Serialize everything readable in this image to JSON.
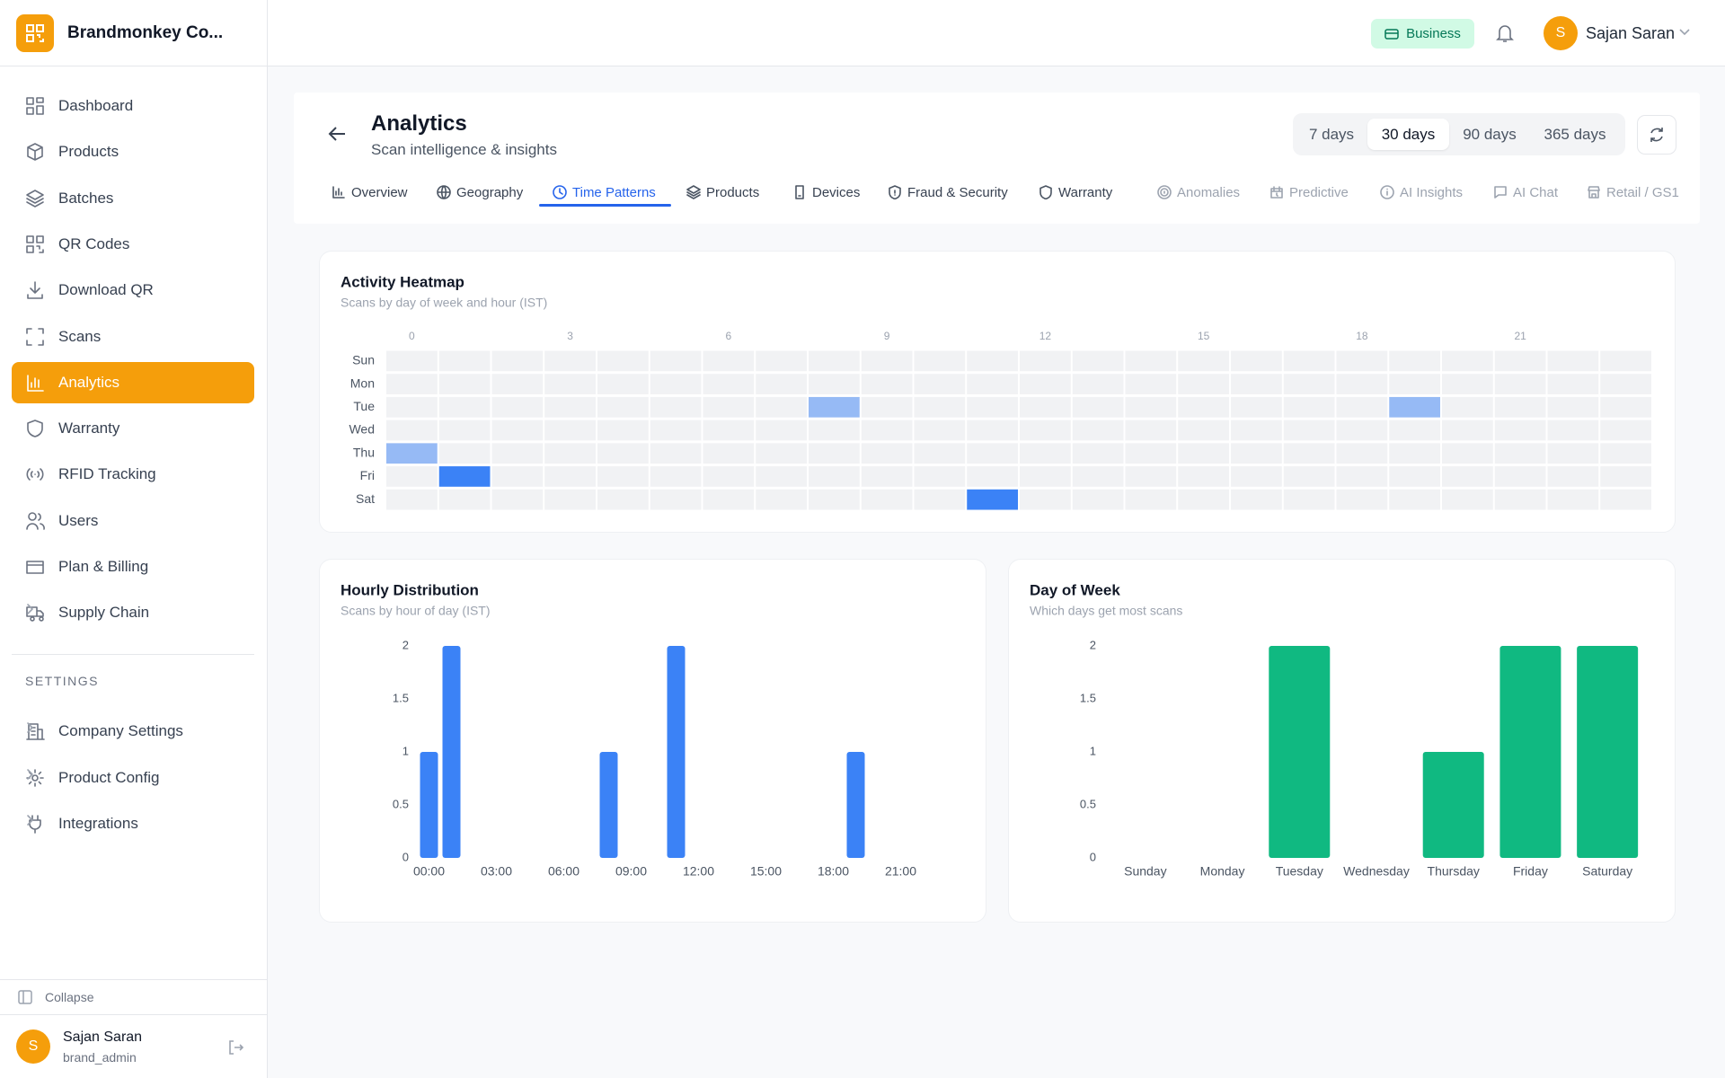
{
  "sidebar": {
    "brand": "Brandmonkey Co...",
    "nav": [
      "Dashboard",
      "Products",
      "Batches",
      "QR Codes",
      "Download QR",
      "Scans",
      "Analytics",
      "Warranty",
      "RFID Tracking",
      "Users",
      "Plan & Billing",
      "Supply Chain"
    ],
    "settings_label": "SETTINGS",
    "settings": [
      "Company Settings",
      "Product Config",
      "Integrations"
    ],
    "collapse": "Collapse",
    "user": {
      "initial": "S",
      "name": "Sajan Saran",
      "role": "brand_admin"
    }
  },
  "header": {
    "plan": "Business",
    "initial": "S",
    "user_name": "Sajan Saran"
  },
  "page": {
    "title": "Analytics",
    "subtitle": "Scan intelligence & insights",
    "ranges": [
      "7 days",
      "30 days",
      "90 days",
      "365 days"
    ],
    "tabs": [
      "Overview",
      "Geography",
      "Time Patterns",
      "Products",
      "Devices",
      "Fraud & Security",
      "Warranty",
      "Anomalies",
      "Predictive",
      "AI Insights",
      "AI Chat",
      "Retail / GS1"
    ]
  },
  "chart_data": [
    {
      "type": "heatmap",
      "title": "Activity Heatmap",
      "subtitle": "Scans by day of week and hour (IST)",
      "categories": [
        "Sun",
        "Mon",
        "Tue",
        "Wed",
        "Thu",
        "Fri",
        "Sat"
      ],
      "x": [
        0,
        1,
        2,
        3,
        4,
        5,
        6,
        7,
        8,
        9,
        10,
        11,
        12,
        13,
        14,
        15,
        16,
        17,
        18,
        19,
        20,
        21,
        22,
        23
      ],
      "xticks": [
        0,
        3,
        6,
        9,
        12,
        15,
        18,
        21
      ],
      "values": [
        [
          0,
          0,
          0,
          0,
          0,
          0,
          0,
          0,
          0,
          0,
          0,
          0,
          0,
          0,
          0,
          0,
          0,
          0,
          0,
          0,
          0,
          0,
          0,
          0
        ],
        [
          0,
          0,
          0,
          0,
          0,
          0,
          0,
          0,
          0,
          0,
          0,
          0,
          0,
          0,
          0,
          0,
          0,
          0,
          0,
          0,
          0,
          0,
          0,
          0
        ],
        [
          0,
          0,
          0,
          0,
          0,
          0,
          0,
          0,
          1,
          0,
          0,
          0,
          0,
          0,
          0,
          0,
          0,
          0,
          0,
          1,
          0,
          0,
          0,
          0
        ],
        [
          0,
          0,
          0,
          0,
          0,
          0,
          0,
          0,
          0,
          0,
          0,
          0,
          0,
          0,
          0,
          0,
          0,
          0,
          0,
          0,
          0,
          0,
          0,
          0
        ],
        [
          1,
          0,
          0,
          0,
          0,
          0,
          0,
          0,
          0,
          0,
          0,
          0,
          0,
          0,
          0,
          0,
          0,
          0,
          0,
          0,
          0,
          0,
          0,
          0
        ],
        [
          0,
          2,
          0,
          0,
          0,
          0,
          0,
          0,
          0,
          0,
          0,
          0,
          0,
          0,
          0,
          0,
          0,
          0,
          0,
          0,
          0,
          0,
          0,
          0
        ],
        [
          0,
          0,
          0,
          0,
          0,
          0,
          0,
          0,
          0,
          0,
          0,
          2,
          0,
          0,
          0,
          0,
          0,
          0,
          0,
          0,
          0,
          0,
          0,
          0
        ]
      ],
      "empty_color": "#f1f2f4",
      "color": "#3b82f6"
    },
    {
      "type": "bar",
      "title": "Hourly Distribution",
      "subtitle": "Scans by hour of day (IST)",
      "categories": [
        "00:00",
        null,
        null,
        "03:00",
        null,
        null,
        "06:00",
        null,
        null,
        "09:00",
        null,
        null,
        "12:00",
        null,
        null,
        "15:00",
        null,
        null,
        "18:00",
        null,
        null,
        "21:00",
        null,
        null
      ],
      "values": [
        1,
        2,
        0,
        0,
        0,
        0,
        0,
        0,
        1,
        0,
        0,
        2,
        0,
        0,
        0,
        0,
        0,
        0,
        0,
        1,
        0,
        0,
        0,
        0
      ],
      "ylim": [
        0,
        2
      ],
      "yticks": [
        0,
        0.5,
        1,
        1.5,
        2
      ],
      "color": "#3b82f6",
      "grid": false
    },
    {
      "type": "bar",
      "title": "Day of Week",
      "subtitle": "Which days get most scans",
      "categories": [
        "Sunday",
        "Monday",
        "Tuesday",
        "Wednesday",
        "Thursday",
        "Friday",
        "Saturday"
      ],
      "values": [
        0,
        0,
        2,
        0,
        1,
        2,
        2
      ],
      "ylim": [
        0,
        2
      ],
      "yticks": [
        0,
        0.5,
        1,
        1.5,
        2
      ],
      "color": "#10b981",
      "grid": false
    }
  ]
}
